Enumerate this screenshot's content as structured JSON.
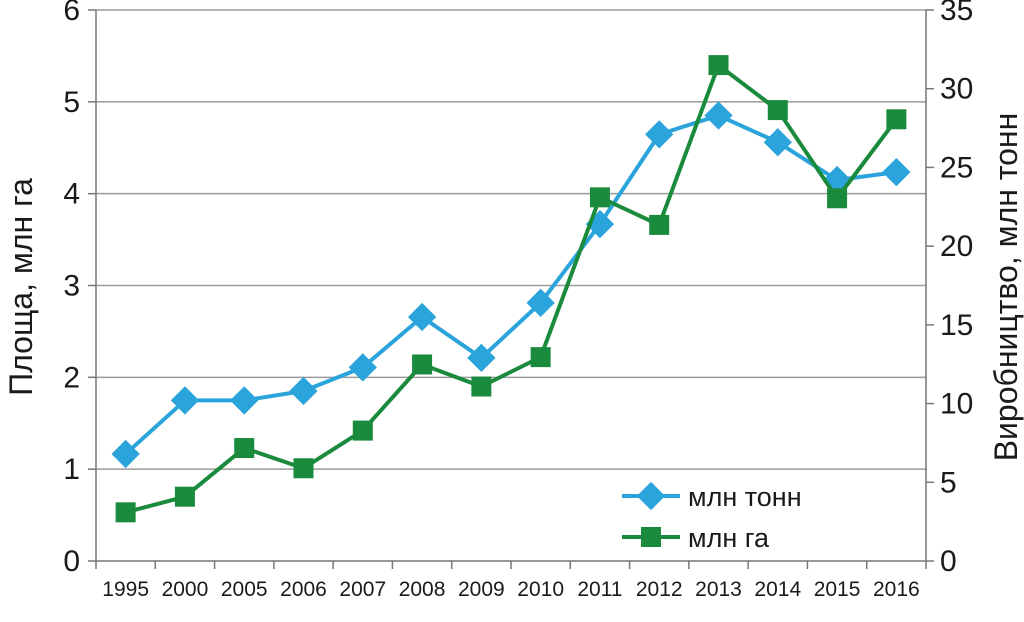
{
  "chart_data": {
    "type": "line",
    "categories": [
      "1995",
      "2000",
      "2005",
      "2006",
      "2007",
      "2008",
      "2009",
      "2010",
      "2011",
      "2012",
      "2013",
      "2014",
      "2015",
      "2016"
    ],
    "ylabel_left": "Площа, млн га",
    "ylabel_right": "Виробництво, млн тонн",
    "ylim_left": [
      0,
      6
    ],
    "yticks_left": [
      "0",
      "1",
      "2",
      "3",
      "4",
      "5",
      "6"
    ],
    "ylim_right": [
      0,
      35
    ],
    "yticks_right": [
      "0",
      "5",
      "10",
      "15",
      "20",
      "25",
      "30",
      "35"
    ],
    "grid": true,
    "legend_position": "bottom-right",
    "series": [
      {
        "name": "млн тонн",
        "axis": "right",
        "color": "#2aa4db",
        "marker": "diamond",
        "values": [
          6.8,
          10.2,
          10.2,
          10.8,
          12.3,
          15.5,
          12.9,
          16.4,
          21.4,
          27.1,
          28.3,
          26.6,
          24.2,
          24.7
        ]
      },
      {
        "name": "млн га",
        "axis": "left",
        "color": "#1a8a3c",
        "marker": "square",
        "values": [
          0.53,
          0.7,
          1.23,
          1.01,
          1.42,
          2.14,
          1.9,
          2.22,
          3.96,
          3.66,
          5.4,
          4.91,
          3.95,
          4.81
        ]
      }
    ]
  }
}
